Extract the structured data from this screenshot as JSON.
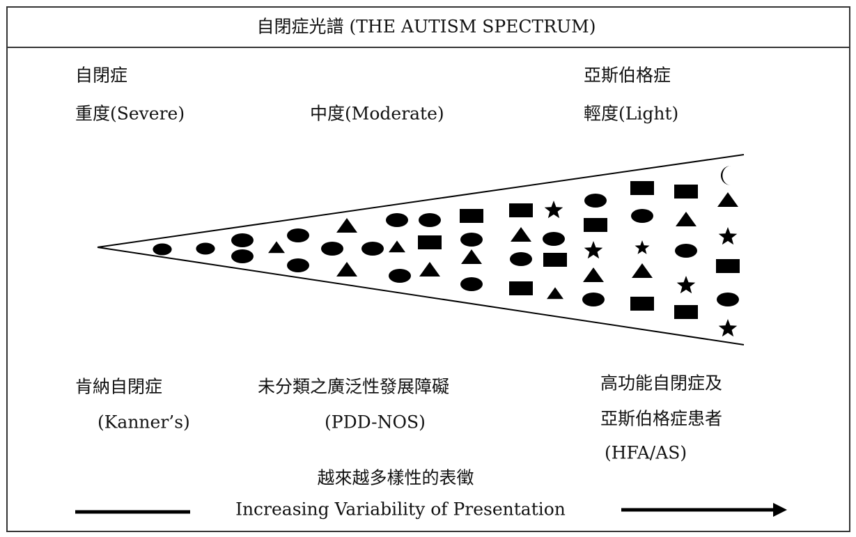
{
  "title": "自閉症光譜 (THE AUTISM SPECTRUM)",
  "top_labels": {
    "left": [
      "自閉症",
      "重度(Severe)"
    ],
    "middle": [
      "中度(Moderate)"
    ],
    "right": [
      "亞斯伯格症",
      "輕度(Light)"
    ]
  },
  "bottom_labels": {
    "left": [
      "肯納自閉症",
      "(Kanner’s)"
    ],
    "middle": [
      "未分類之廣泛性發展障礙",
      "(PDD-NOS)"
    ],
    "right": [
      "高功能自閉症及",
      "亞斯伯格症患者",
      "(HFA/AS)"
    ]
  },
  "variability": {
    "chinese": "越來越多樣性的表徵",
    "english": "Increasing Variability of Presentation"
  }
}
